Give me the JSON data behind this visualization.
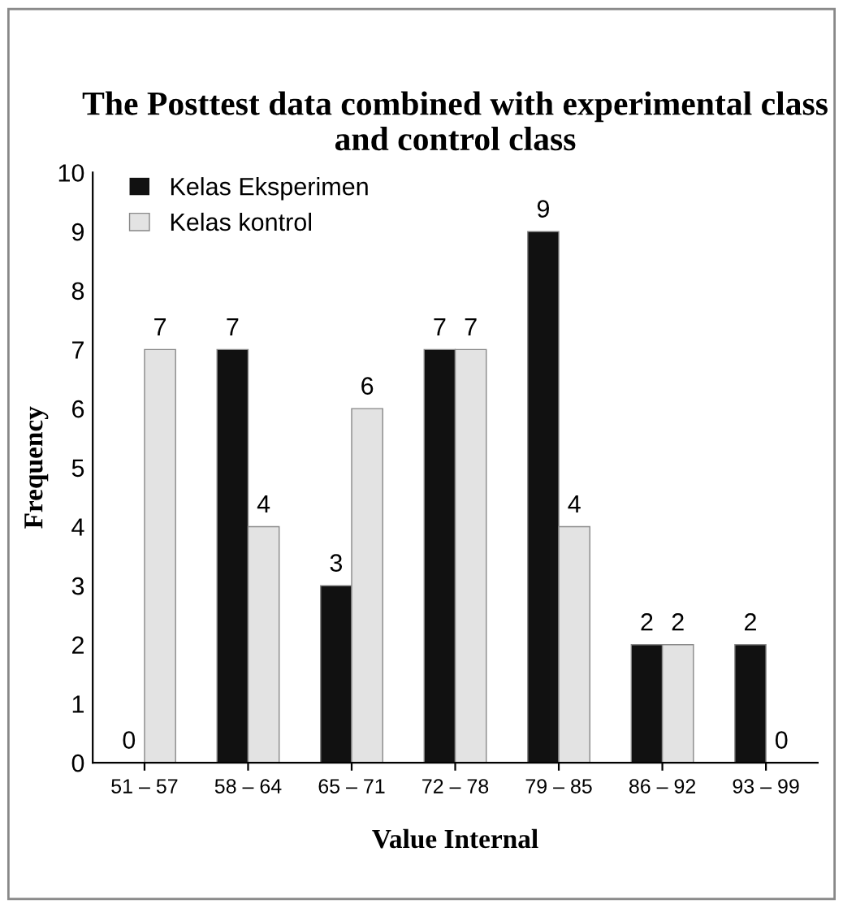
{
  "chart_data": {
    "type": "bar",
    "title": "The Posttest data combined with experimental class and control class",
    "xlabel": "Value Internal",
    "ylabel": "Frequency",
    "categories": [
      "51 – 57",
      "58 – 64",
      "65 – 71",
      "72 – 78",
      "79 – 85",
      "86 – 92",
      "93 – 99"
    ],
    "series": [
      {
        "name": "Kelas Eksperimen",
        "color": "#111111",
        "values": [
          0,
          7,
          3,
          7,
          9,
          2,
          2
        ]
      },
      {
        "name": "Kelas kontrol",
        "color": "#e3e3e3",
        "values": [
          7,
          4,
          6,
          7,
          4,
          2,
          0
        ]
      }
    ],
    "ylim": [
      0,
      10
    ],
    "yticks": [
      0,
      1,
      2,
      3,
      4,
      5,
      6,
      7,
      8,
      9,
      10
    ],
    "data_labels": true,
    "grid": false,
    "legend": "top left"
  }
}
